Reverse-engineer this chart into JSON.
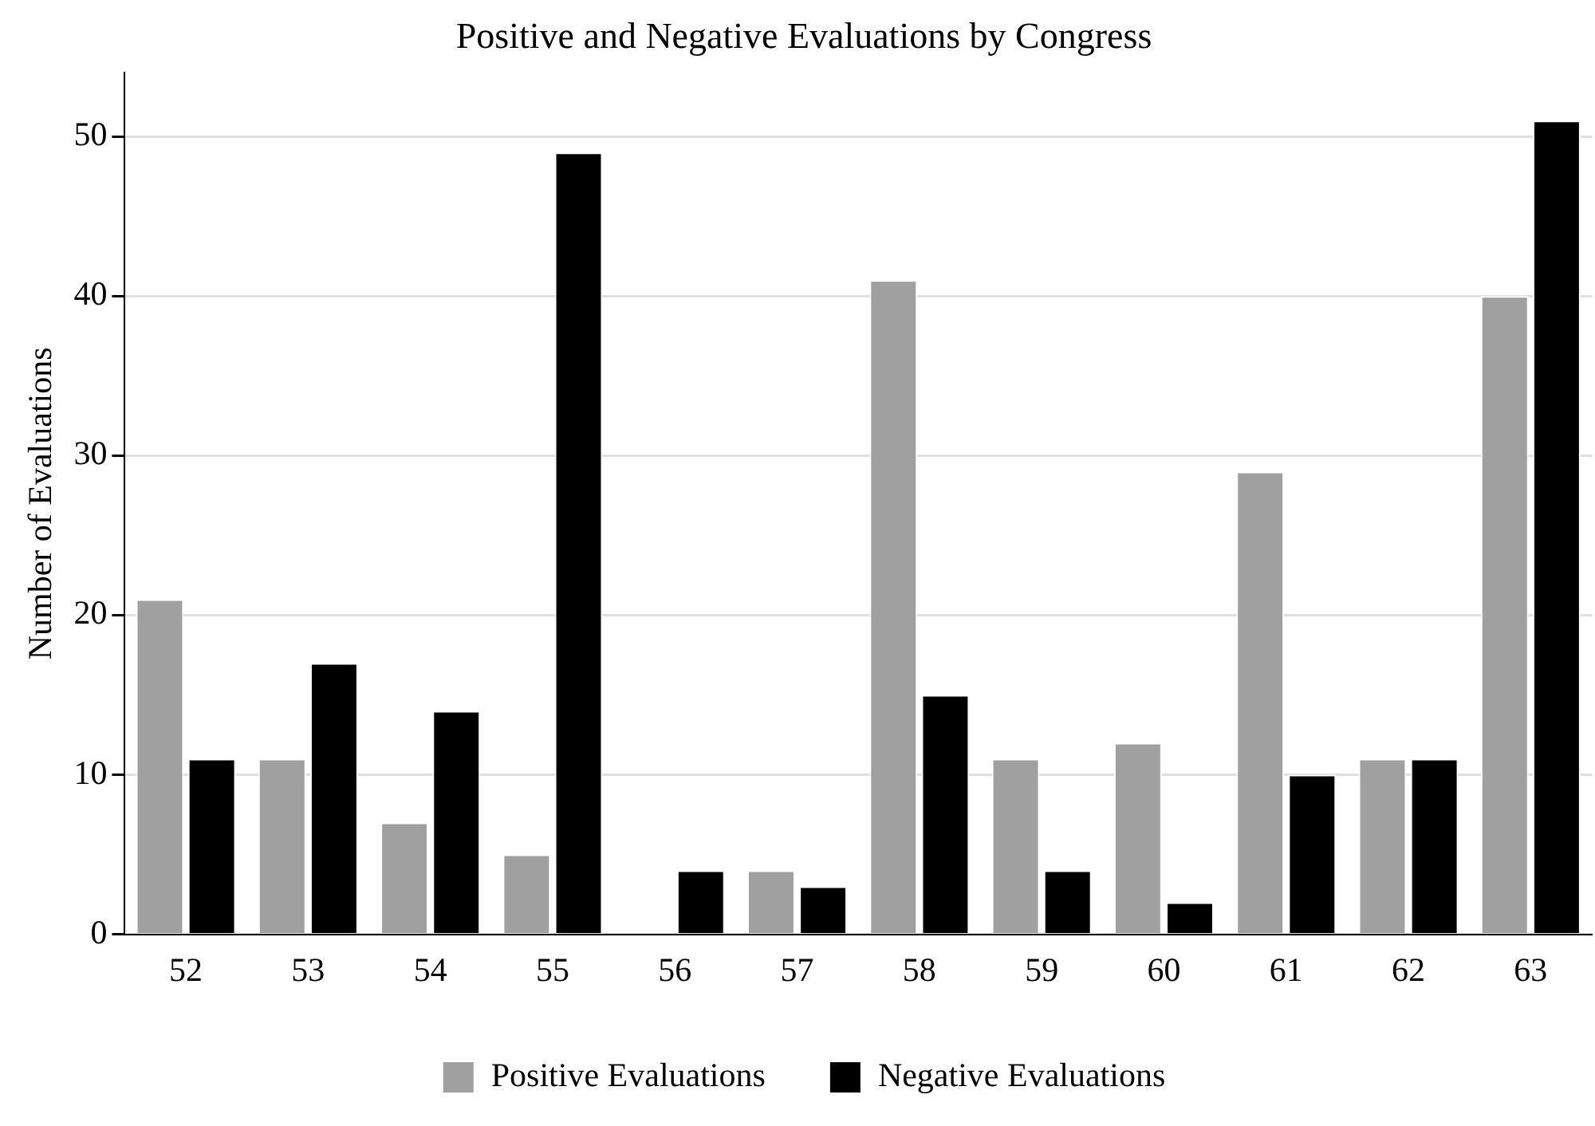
{
  "chart_data": {
    "type": "bar",
    "title": "Positive and Negative Evaluations by Congress",
    "ylabel": "Number of Evaluations",
    "categories": [
      "52",
      "53",
      "54",
      "55",
      "56",
      "57",
      "58",
      "59",
      "60",
      "61",
      "62",
      "63"
    ],
    "series": [
      {
        "name": "Positive Evaluations",
        "color": "#a0a0a0",
        "values": [
          21,
          11,
          7,
          5,
          0,
          4,
          41,
          11,
          12,
          29,
          11,
          40
        ]
      },
      {
        "name": "Negative Evaluations",
        "color": "#000000",
        "values": [
          11,
          17,
          14,
          49,
          4,
          3,
          15,
          4,
          2,
          10,
          11,
          51
        ]
      }
    ],
    "ylim": [
      0,
      54
    ],
    "yticks": [
      0,
      10,
      20,
      30,
      40,
      50
    ],
    "grid": "y",
    "legend": "bottom"
  }
}
